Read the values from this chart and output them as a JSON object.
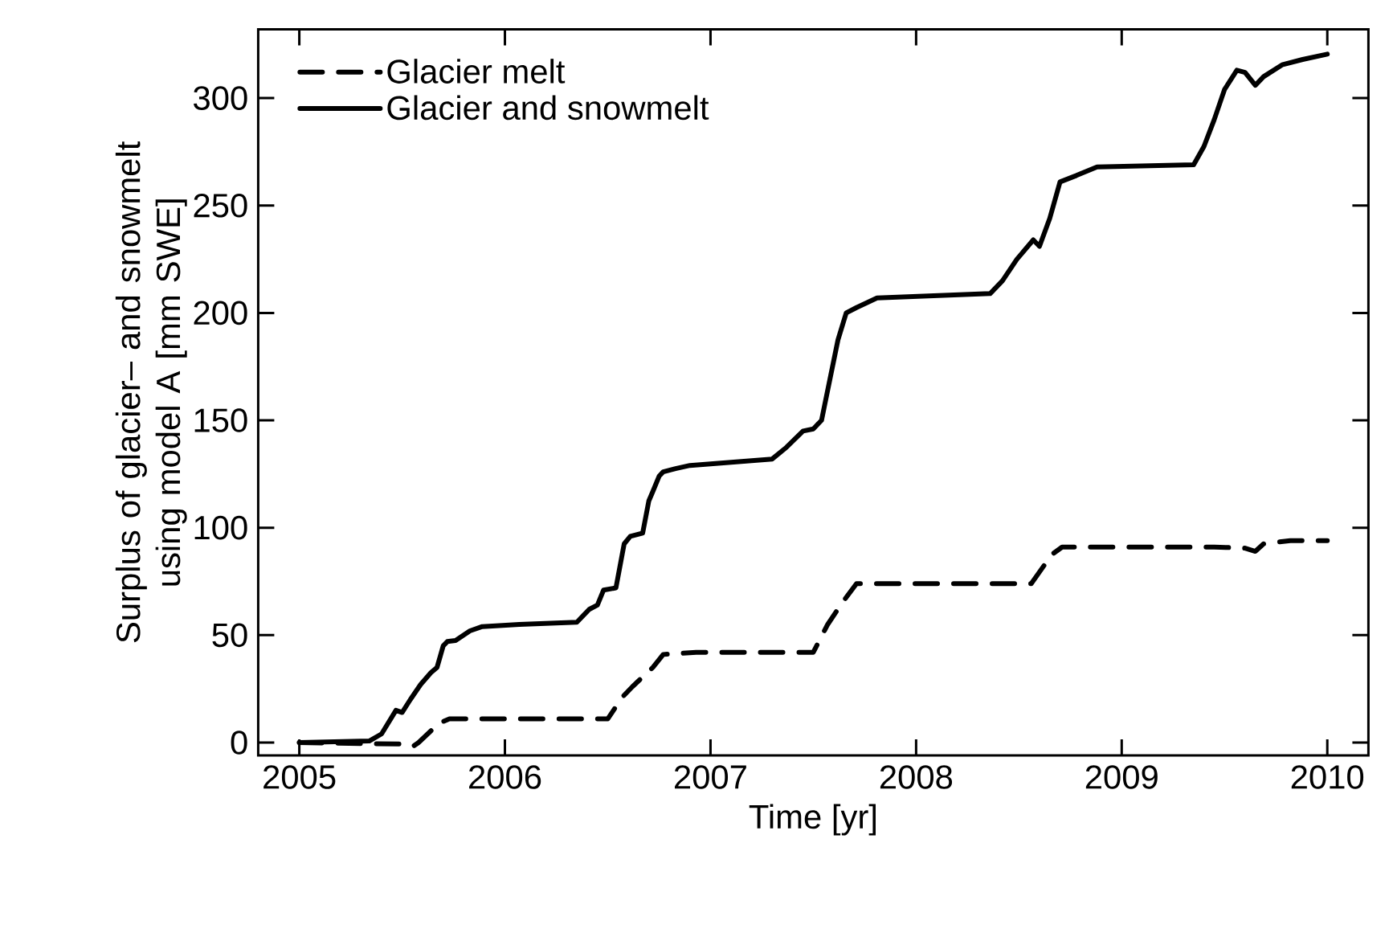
{
  "chart_data": {
    "type": "line",
    "xlabel": "Time [yr]",
    "ylabel": "Surplus of glacier– and snowmelt using model A [mm SWE]",
    "xlim": [
      2004.8,
      2010.2
    ],
    "ylim": [
      -6,
      332
    ],
    "xticks": [
      2005,
      2006,
      2007,
      2008,
      2009,
      2010
    ],
    "yticks": [
      0,
      50,
      100,
      150,
      200,
      250,
      300
    ],
    "legend": "top left",
    "series": [
      {
        "name": "Glacier melt",
        "color": "#000000",
        "line_style": "dashed",
        "x": [
          2005,
          2005.34,
          2005.5,
          2005.55,
          2005.58,
          2005.68,
          2005.73,
          2006.5,
          2006.57,
          2006.62,
          2006.72,
          2006.77,
          2006.93,
          2007.5,
          2007.57,
          2007.64,
          2007.71,
          2008.56,
          2008.66,
          2008.71,
          2009.45,
          2009.6,
          2009.65,
          2009.69,
          2009.82,
          2010
        ],
        "values": [
          0,
          -0.5,
          -0.7,
          -2,
          0,
          9,
          11,
          11,
          21,
          26,
          35,
          41,
          42,
          42,
          55,
          65,
          74,
          74,
          87.5,
          91,
          91,
          90.5,
          89,
          92.5,
          94,
          94
        ]
      },
      {
        "name": "Glacier and snowmelt",
        "color": "#000000",
        "line_style": "solid",
        "x": [
          2005,
          2005.34,
          2005.4,
          2005.47,
          2005.5,
          2005.54,
          2005.59,
          2005.64,
          2005.67,
          2005.7,
          2005.72,
          2005.76,
          2005.83,
          2005.89,
          2006.07,
          2006.35,
          2006.41,
          2006.45,
          2006.48,
          2006.54,
          2006.58,
          2006.61,
          2006.67,
          2006.7,
          2006.72,
          2006.75,
          2006.77,
          2006.83,
          2006.9,
          2007.3,
          2007.37,
          2007.45,
          2007.5,
          2007.54,
          2007.62,
          2007.66,
          2007.71,
          2007.81,
          2008.36,
          2008.42,
          2008.49,
          2008.57,
          2008.6,
          2008.65,
          2008.7,
          2008.78,
          2008.88,
          2009.35,
          2009.4,
          2009.45,
          2009.5,
          2009.56,
          2009.6,
          2009.65,
          2009.69,
          2009.78,
          2009.88,
          2010
        ],
        "values": [
          0,
          0.7,
          4,
          15,
          14,
          20,
          27,
          32.5,
          35,
          45,
          47,
          47.5,
          52,
          54,
          55,
          56,
          62,
          64,
          71,
          72,
          92.5,
          96,
          97.5,
          112.5,
          117,
          124,
          126,
          127.5,
          129,
          132,
          137.5,
          145,
          146,
          150,
          187.5,
          200,
          202.5,
          207,
          209,
          215,
          225,
          234,
          231,
          244,
          261,
          264,
          268,
          269,
          277.5,
          290,
          304,
          313,
          312,
          306,
          310,
          315.5,
          318,
          320.5
        ]
      }
    ]
  }
}
